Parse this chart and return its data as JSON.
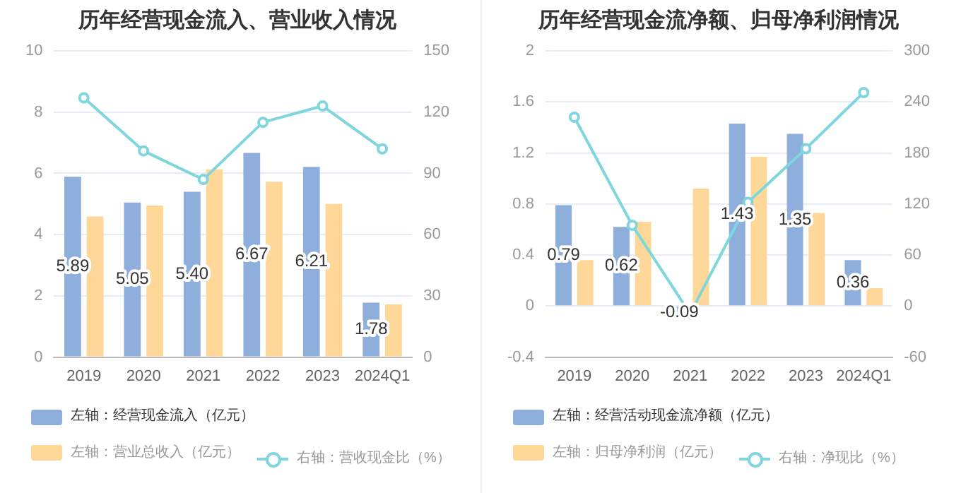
{
  "chart_data": [
    {
      "type": "bar",
      "title": "历年经营现金流入、营业收入情况",
      "categories": [
        "2019",
        "2020",
        "2021",
        "2022",
        "2023",
        "2024Q1"
      ],
      "series": [
        {
          "name": "左轴：经营现金流入（亿元）",
          "color": "#8eaedb",
          "values": [
            5.89,
            5.05,
            5.4,
            6.67,
            6.21,
            1.78
          ],
          "value_labels": [
            "5.89",
            "5.05",
            "5.40",
            "6.67",
            "6.21",
            "1.78"
          ]
        },
        {
          "name": "左轴：营业总收入（亿元）",
          "color": "#ffd899",
          "values": [
            4.59,
            4.95,
            6.13,
            5.73,
            5.0,
            1.72
          ]
        },
        {
          "name": "右轴：营收现金比（%）",
          "type": "line",
          "axis": "y2",
          "color": "#7fd6dc",
          "values": [
            127,
            101,
            87,
            115,
            123,
            102
          ]
        }
      ],
      "ylim": [
        0,
        10
      ],
      "yticks": [
        0,
        2,
        4,
        6,
        8,
        10
      ],
      "y2lim": [
        0,
        150
      ],
      "y2ticks": [
        0,
        30,
        60,
        90,
        120,
        150
      ],
      "grid": "y",
      "legend": "bottom",
      "marker": "circle"
    },
    {
      "type": "bar",
      "title": "历年经营现金流净额、归母净利润情况",
      "categories": [
        "2019",
        "2020",
        "2021",
        "2022",
        "2023",
        "2024Q1"
      ],
      "series": [
        {
          "name": "左轴：经营活动现金流净额（亿元）",
          "color": "#8eaedb",
          "values": [
            0.79,
            0.62,
            -0.09,
            1.43,
            1.35,
            0.36
          ],
          "value_labels": [
            "0.79",
            "0.62",
            "-0.09",
            "1.43",
            "1.35",
            "0.36"
          ]
        },
        {
          "name": "左轴：归母净利润（亿元）",
          "color": "#ffd899",
          "values": [
            0.36,
            0.66,
            0.92,
            1.17,
            0.73,
            0.14
          ]
        },
        {
          "name": "右轴：净现比（%）",
          "type": "line",
          "axis": "y2",
          "color": "#7fd6dc",
          "values": [
            222,
            95,
            -9,
            122,
            185,
            251
          ]
        }
      ],
      "ylim": [
        -0.4,
        2
      ],
      "yticks": [
        -0.4,
        0,
        0.4,
        0.8,
        1.2,
        1.6,
        2
      ],
      "y2lim": [
        -60,
        300
      ],
      "y2ticks": [
        -60,
        0,
        60,
        120,
        180,
        240,
        300
      ],
      "grid": "y",
      "legend": "bottom",
      "marker": "circle"
    }
  ]
}
